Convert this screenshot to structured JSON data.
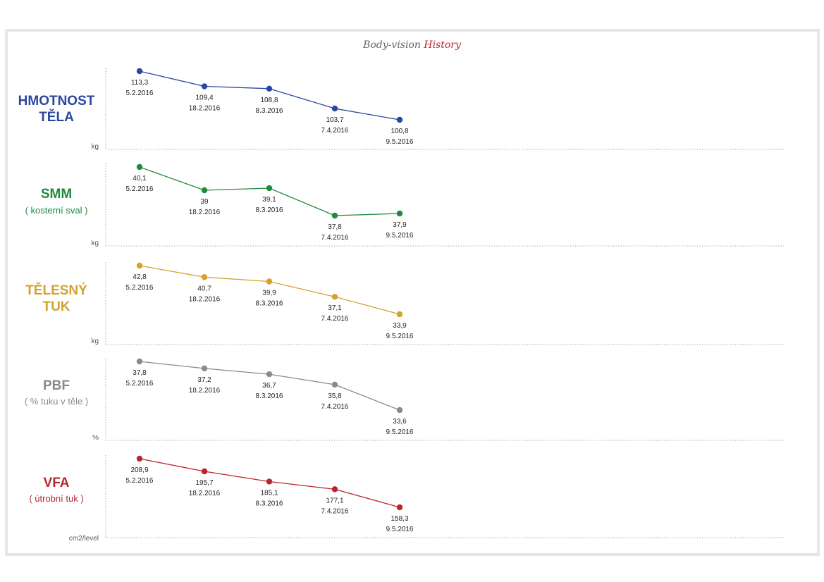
{
  "header": {
    "title_part1": "Body-vision",
    "title_part2": "History"
  },
  "chart_data": [
    {
      "type": "line",
      "title": "HMOTNOST\nTĚLA",
      "subtitle": "",
      "ylabel": "kg",
      "color": "#2a46a0",
      "x": [
        "5.2.2016",
        "18.2.2016",
        "8.3.2016",
        "7.4.2016",
        "9.5.2016"
      ],
      "values": [
        113.3,
        109.4,
        108.8,
        103.7,
        100.8
      ],
      "labels": [
        "113,3",
        "109,4",
        "108,8",
        "103,7",
        "100,8"
      ]
    },
    {
      "type": "line",
      "title": "SMM",
      "subtitle": "( kosterní sval )",
      "ylabel": "kg",
      "color": "#1f8a3a",
      "x": [
        "5.2.2016",
        "18.2.2016",
        "8.3.2016",
        "7.4.2016",
        "9.5.2016"
      ],
      "values": [
        40.1,
        39,
        39.1,
        37.8,
        37.9
      ],
      "labels": [
        "40,1",
        "39",
        "39,1",
        "37,8",
        "37,9"
      ]
    },
    {
      "type": "line",
      "title": "TĚLESNÝ\nTUK",
      "subtitle": "",
      "ylabel": "kg",
      "color": "#d4a22c",
      "x": [
        "5.2.2016",
        "18.2.2016",
        "8.3.2016",
        "7.4.2016",
        "9.5.2016"
      ],
      "values": [
        42.8,
        40.7,
        39.9,
        37.1,
        33.9
      ],
      "labels": [
        "42,8",
        "40,7",
        "39,9",
        "37,1",
        "33,9"
      ]
    },
    {
      "type": "line",
      "title": "PBF",
      "subtitle": "( % tuku v těle )",
      "ylabel": "%",
      "color": "#8a8a8a",
      "x": [
        "5.2.2016",
        "18.2.2016",
        "8.3.2016",
        "7.4.2016",
        "9.5.2016"
      ],
      "values": [
        37.8,
        37.2,
        36.7,
        35.8,
        33.6
      ],
      "labels": [
        "37,8",
        "37,2",
        "36,7",
        "35,8",
        "33,6"
      ]
    },
    {
      "type": "line",
      "title": "VFA",
      "subtitle": "( útrobní tuk )",
      "ylabel": "cm2/level",
      "color": "#b8262b",
      "x": [
        "5.2.2016",
        "18.2.2016",
        "8.3.2016",
        "7.4.2016",
        "9.5.2016"
      ],
      "values": [
        208.9,
        195.7,
        185.1,
        177.1,
        158.3
      ],
      "labels": [
        "208,9",
        "195,7",
        "185,1",
        "177,1",
        "158,3"
      ]
    }
  ]
}
